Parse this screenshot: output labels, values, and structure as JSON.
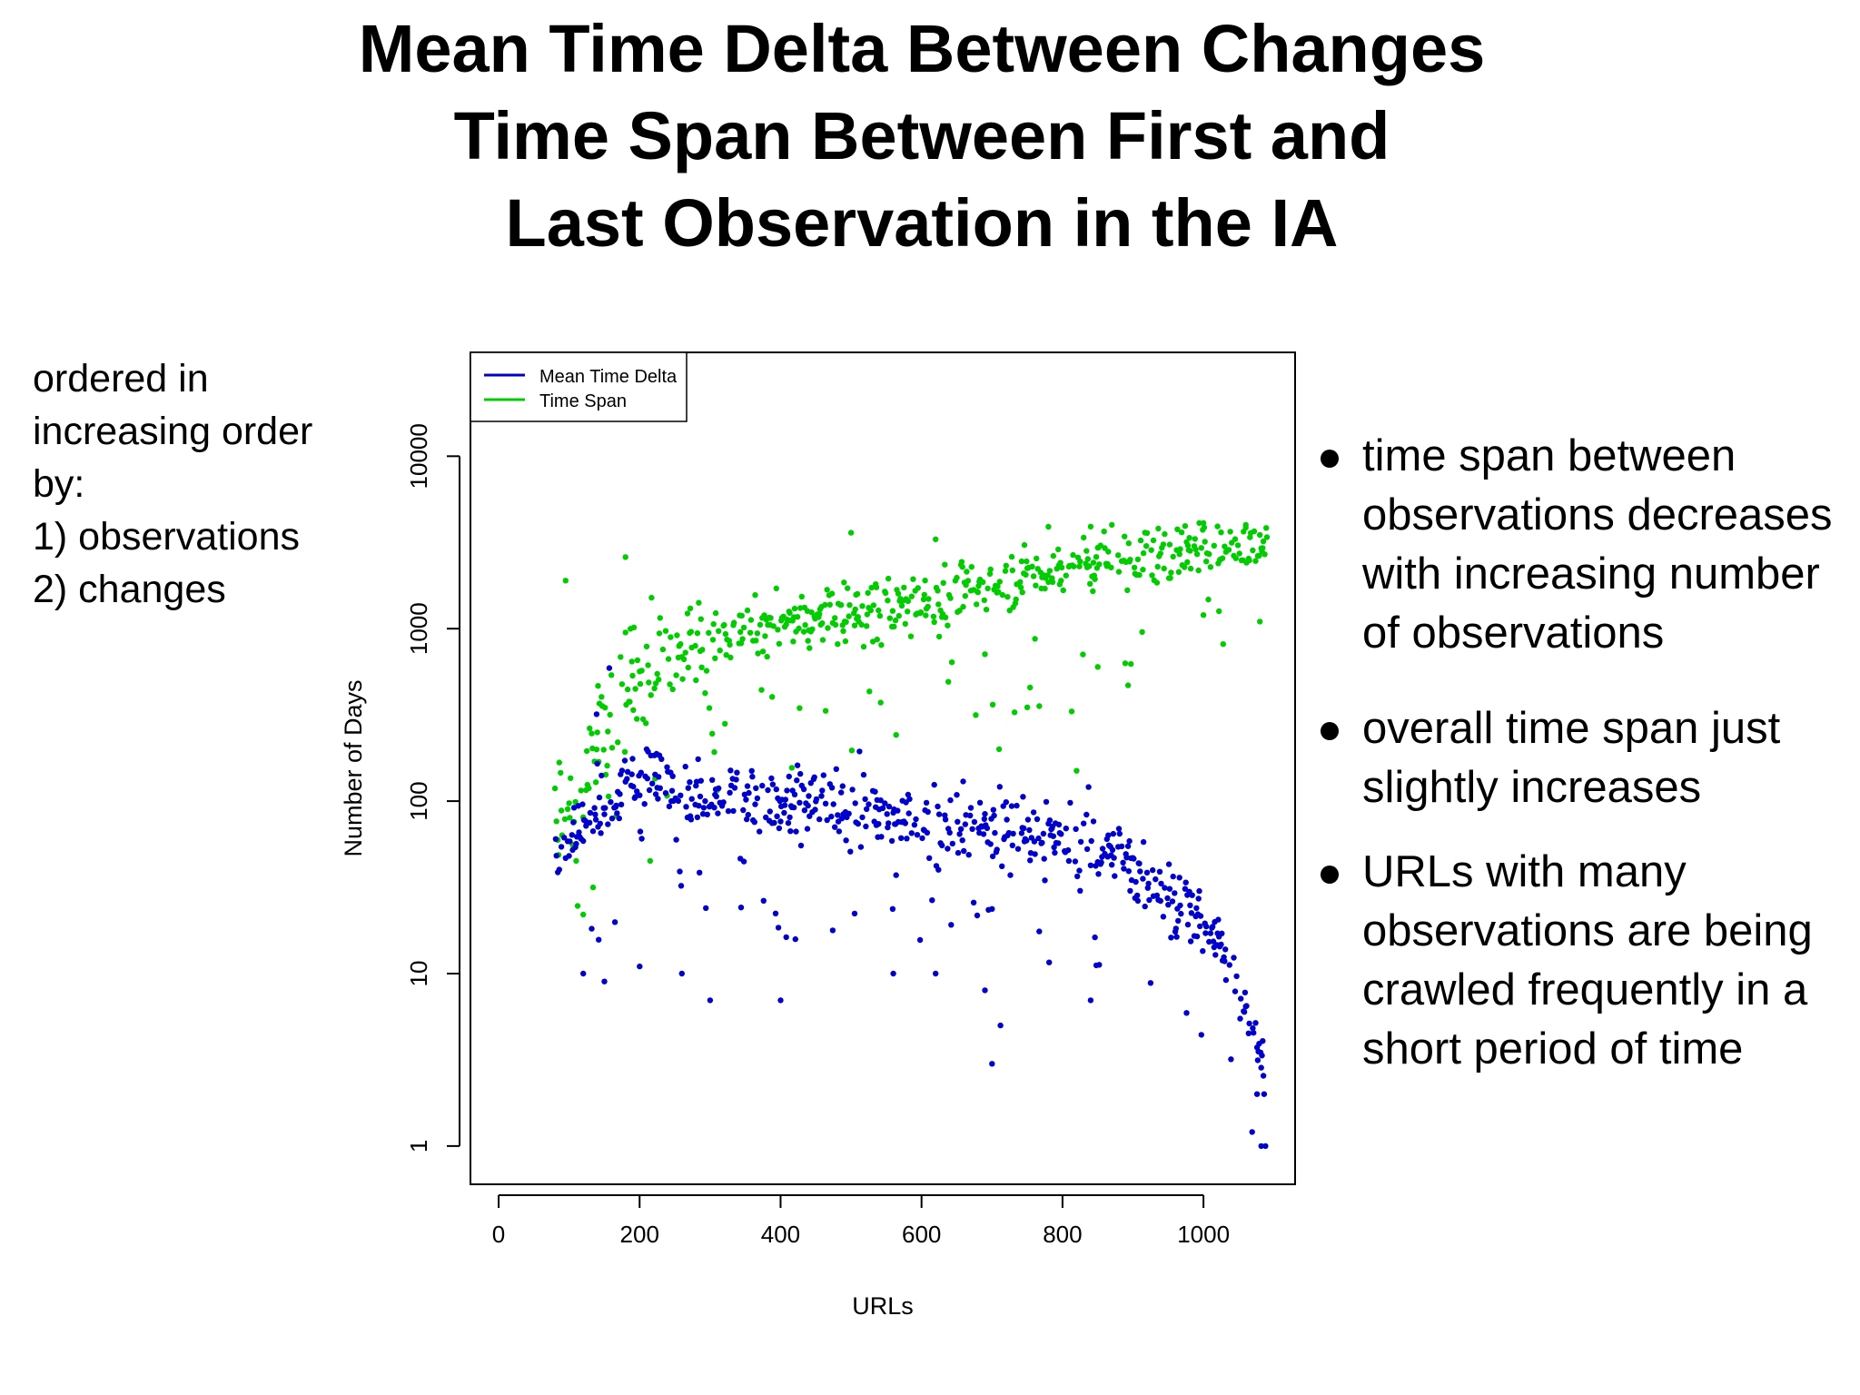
{
  "slide": {
    "title_lines": [
      "Mean Time Delta Between Changes",
      "Time Span Between First and",
      "Last Observation in the IA"
    ],
    "left_note_lines": [
      "ordered in",
      "increasing order",
      "by:",
      "1) observations",
      "2) changes"
    ],
    "bullets": [
      "time span between observations decreases with increasing number of observations",
      "overall time span just slightly increases",
      "URLs with many observations are being crawled frequently in a short period of time"
    ]
  },
  "chart_data": {
    "type": "scatter",
    "xlabel": "URLs",
    "ylabel": "Number of Days",
    "xlim": [
      -40,
      1130
    ],
    "ylim": [
      0.6,
      40000
    ],
    "y_scale": "log",
    "x_ticks": [
      0,
      200,
      400,
      600,
      800,
      1000
    ],
    "x_tick_labels": [
      "0",
      "200",
      "400",
      "600",
      "800",
      "1000"
    ],
    "y_ticks": [
      1,
      10,
      100,
      1000,
      10000
    ],
    "y_tick_labels": [
      "1",
      "10",
      "100",
      "1000",
      "10000"
    ],
    "grid": false,
    "legend_position": "top-left",
    "series": [
      {
        "name": "Mean Time Delta",
        "color": "#0000CC",
        "trend": [
          [
            80,
            55
          ],
          [
            100,
            60
          ],
          [
            150,
            95
          ],
          [
            200,
            140
          ],
          [
            300,
            115
          ],
          [
            400,
            95
          ],
          [
            500,
            90
          ],
          [
            600,
            75
          ],
          [
            700,
            70
          ],
          [
            800,
            60
          ],
          [
            850,
            55
          ],
          [
            900,
            42
          ],
          [
            950,
            30
          ],
          [
            1000,
            20
          ],
          [
            1030,
            13
          ],
          [
            1050,
            8
          ],
          [
            1060,
            6
          ],
          [
            1070,
            4.5
          ],
          [
            1080,
            3.5
          ],
          [
            1090,
            3
          ]
        ],
        "extra_points": [
          [
            700,
            3
          ],
          [
            712,
            5
          ],
          [
            1082,
            1
          ],
          [
            1088,
            1
          ],
          [
            1076,
            2
          ],
          [
            1086,
            2
          ],
          [
            300,
            7
          ],
          [
            400,
            7
          ],
          [
            120,
            10
          ],
          [
            150,
            9
          ],
          [
            200,
            11
          ],
          [
            260,
            10
          ],
          [
            560,
            10
          ],
          [
            620,
            10
          ],
          [
            690,
            8
          ],
          [
            840,
            7
          ]
        ]
      },
      {
        "name": "Time Span",
        "color": "#00CC00",
        "trend": [
          [
            80,
            90
          ],
          [
            100,
            110
          ],
          [
            140,
            240
          ],
          [
            200,
            500
          ],
          [
            250,
            750
          ],
          [
            300,
            850
          ],
          [
            400,
            1050
          ],
          [
            500,
            1250
          ],
          [
            600,
            1450
          ],
          [
            700,
            1800
          ],
          [
            800,
            2300
          ],
          [
            900,
            2600
          ],
          [
            1000,
            2900
          ],
          [
            1090,
            3100
          ]
        ],
        "extra_points": [
          [
            500,
            3600
          ],
          [
            620,
            3300
          ],
          [
            780,
            3900
          ],
          [
            870,
            4000
          ],
          [
            1060,
            4000
          ],
          [
            180,
            2600
          ],
          [
            95,
            1900
          ],
          [
            120,
            22
          ],
          [
            110,
            45
          ],
          [
            215,
            45
          ],
          [
            710,
            200
          ],
          [
            750,
            350
          ],
          [
            820,
            150
          ],
          [
            850,
            600
          ],
          [
            1080,
            1100
          ],
          [
            1000,
            1200
          ]
        ]
      }
    ]
  }
}
